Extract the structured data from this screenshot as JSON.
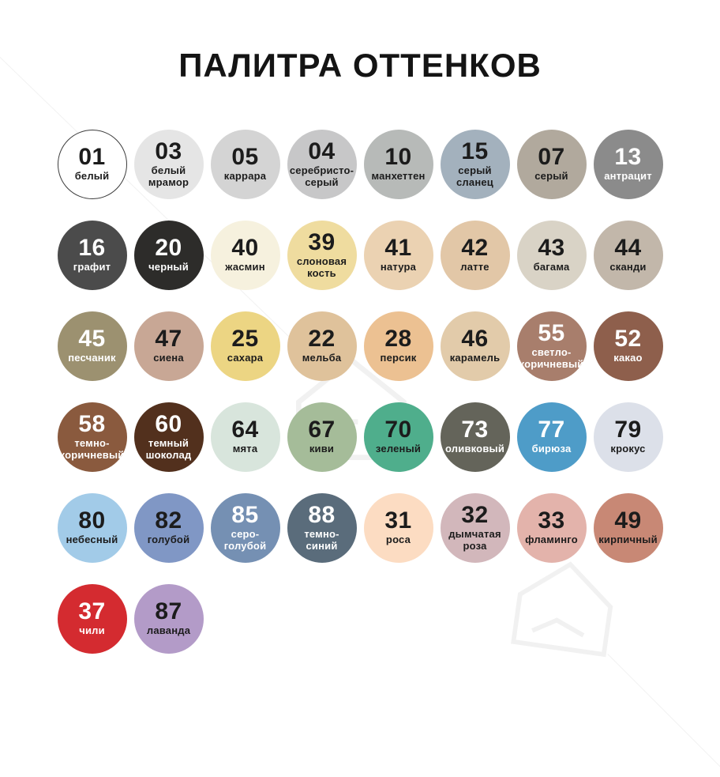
{
  "title": "ПАЛИТРА ОТТЕНКОВ",
  "palette": {
    "rows": [
      [
        {
          "code": "01",
          "name": "белый",
          "bg": "#ffffff",
          "fg": "#1c1c1c",
          "border": "#3c3c3c"
        },
        {
          "code": "03",
          "name": "белый\nмрамор",
          "bg": "#e5e5e5",
          "fg": "#1c1c1c"
        },
        {
          "code": "05",
          "name": "каррара",
          "bg": "#d4d4d4",
          "fg": "#1c1c1c"
        },
        {
          "code": "04",
          "name": "серебристо-\nсерый",
          "bg": "#c7c7c8",
          "fg": "#1c1c1c"
        },
        {
          "code": "10",
          "name": "манхеттен",
          "bg": "#b7bab8",
          "fg": "#1c1c1c"
        },
        {
          "code": "15",
          "name": "серый\nсланец",
          "bg": "#a3b1bd",
          "fg": "#1c1c1c"
        },
        {
          "code": "07",
          "name": "серый",
          "bg": "#b1a99d",
          "fg": "#1c1c1c"
        },
        {
          "code": "13",
          "name": "антрацит",
          "bg": "#8b8b8b",
          "fg": "#ffffff"
        }
      ],
      [
        {
          "code": "16",
          "name": "графит",
          "bg": "#4b4b4b",
          "fg": "#ffffff"
        },
        {
          "code": "20",
          "name": "черный",
          "bg": "#2d2c2a",
          "fg": "#ffffff"
        },
        {
          "code": "40",
          "name": "жасмин",
          "bg": "#f6f1de",
          "fg": "#1c1c1c"
        },
        {
          "code": "39",
          "name": "слоновая\nкость",
          "bg": "#efdc9f",
          "fg": "#1c1c1c"
        },
        {
          "code": "41",
          "name": "натура",
          "bg": "#ebd2b2",
          "fg": "#1c1c1c"
        },
        {
          "code": "42",
          "name": "латте",
          "bg": "#e2c7a7",
          "fg": "#1c1c1c"
        },
        {
          "code": "43",
          "name": "багама",
          "bg": "#d9d3c6",
          "fg": "#1c1c1c"
        },
        {
          "code": "44",
          "name": "сканди",
          "bg": "#c2b7aa",
          "fg": "#1c1c1c"
        }
      ],
      [
        {
          "code": "45",
          "name": "песчаник",
          "bg": "#9c9170",
          "fg": "#ffffff"
        },
        {
          "code": "47",
          "name": "сиена",
          "bg": "#c8a795",
          "fg": "#1c1c1c"
        },
        {
          "code": "25",
          "name": "сахара",
          "bg": "#ecd583",
          "fg": "#1c1c1c"
        },
        {
          "code": "22",
          "name": "мельба",
          "bg": "#dfc29b",
          "fg": "#1c1c1c"
        },
        {
          "code": "28",
          "name": "персик",
          "bg": "#ecc192",
          "fg": "#1c1c1c"
        },
        {
          "code": "46",
          "name": "карамель",
          "bg": "#e2cbaa",
          "fg": "#1c1c1c"
        },
        {
          "code": "55",
          "name": "светло-\nкоричневый",
          "bg": "#a87e6c",
          "fg": "#ffffff"
        },
        {
          "code": "52",
          "name": "какао",
          "bg": "#8e5f4c",
          "fg": "#ffffff"
        }
      ],
      [
        {
          "code": "58",
          "name": "темно-\nкоричневый",
          "bg": "#8a5a3e",
          "fg": "#ffffff"
        },
        {
          "code": "60",
          "name": "темный\nшоколад",
          "bg": "#52301d",
          "fg": "#ffffff"
        },
        {
          "code": "64",
          "name": "мята",
          "bg": "#d8e5dc",
          "fg": "#1c1c1c"
        },
        {
          "code": "67",
          "name": "киви",
          "bg": "#a5bc99",
          "fg": "#1c1c1c"
        },
        {
          "code": "70",
          "name": "зеленый",
          "bg": "#4fae8c",
          "fg": "#1c1c1c"
        },
        {
          "code": "73",
          "name": "оливковый",
          "bg": "#64645a",
          "fg": "#ffffff"
        },
        {
          "code": "77",
          "name": "бирюза",
          "bg": "#4e9cc8",
          "fg": "#ffffff"
        },
        {
          "code": "79",
          "name": "крокус",
          "bg": "#dce0e9",
          "fg": "#1c1c1c"
        }
      ],
      [
        {
          "code": "80",
          "name": "небесный",
          "bg": "#a2cbe8",
          "fg": "#1c1c1c"
        },
        {
          "code": "82",
          "name": "голубой",
          "bg": "#8097c5",
          "fg": "#1c1c1c"
        },
        {
          "code": "85",
          "name": "серо-\nголубой",
          "bg": "#7590b3",
          "fg": "#ffffff"
        },
        {
          "code": "88",
          "name": "темно-\nсиний",
          "bg": "#5a6c7b",
          "fg": "#ffffff"
        },
        {
          "code": "31",
          "name": "роса",
          "bg": "#fcdcc2",
          "fg": "#1c1c1c"
        },
        {
          "code": "32",
          "name": "дымчатая\nроза",
          "bg": "#d2b7bb",
          "fg": "#1c1c1c"
        },
        {
          "code": "33",
          "name": "фламинго",
          "bg": "#e3b3ab",
          "fg": "#1c1c1c"
        },
        {
          "code": "49",
          "name": "кирпичный",
          "bg": "#c88875",
          "fg": "#1c1c1c"
        }
      ],
      [
        {
          "code": "37",
          "name": "чили",
          "bg": "#d42b30",
          "fg": "#ffffff"
        },
        {
          "code": "87",
          "name": "лаванда",
          "bg": "#b39bc8",
          "fg": "#1c1c1c"
        }
      ]
    ]
  }
}
